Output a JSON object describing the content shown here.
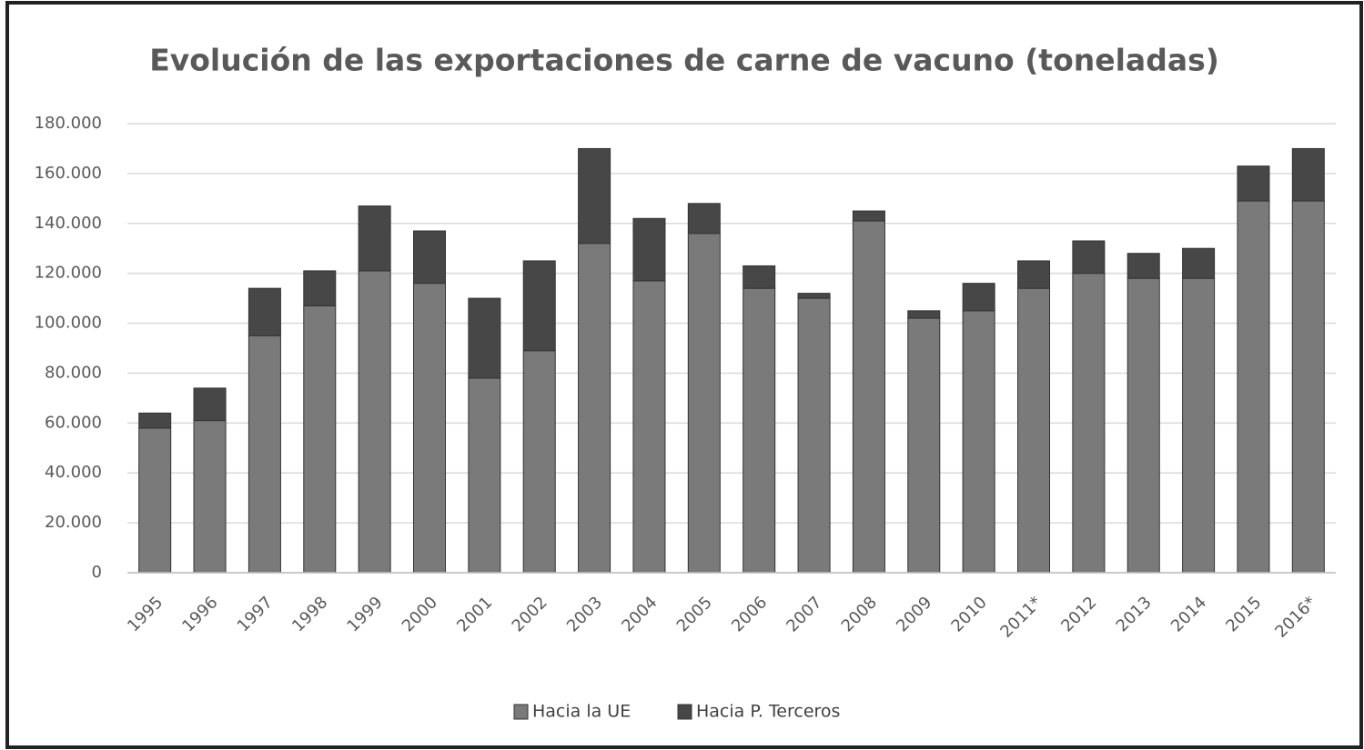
{
  "chart_data": {
    "type": "stacked_bar",
    "title": "Evolución de las exportaciones de carne de vacuno (toneladas)",
    "categories": [
      "1995",
      "1996",
      "1997",
      "1998",
      "1999",
      "2000",
      "2001",
      "2002",
      "2003",
      "2004",
      "2005",
      "2006",
      "2007",
      "2008",
      "2009",
      "2010",
      "2011*",
      "2012",
      "2013",
      "2014",
      "2015",
      "2016*"
    ],
    "series": [
      {
        "name": "Hacia la UE",
        "color": "#7a7a7a",
        "values": [
          58000,
          61000,
          95000,
          107000,
          121000,
          116000,
          78000,
          89000,
          132000,
          117000,
          136000,
          114000,
          110000,
          141000,
          102000,
          105000,
          114000,
          120000,
          118000,
          118000,
          149000,
          149000
        ]
      },
      {
        "name": "Hacia P. Terceros",
        "color": "#474747",
        "values": [
          6000,
          13000,
          19000,
          14000,
          26000,
          21000,
          32000,
          36000,
          38000,
          25000,
          12000,
          9000,
          2000,
          4000,
          3000,
          11000,
          11000,
          13000,
          10000,
          12000,
          14000,
          21000
        ]
      }
    ],
    "ylim": [
      0,
      180000
    ],
    "yticks": [
      0,
      {
        "value": 20000,
        "label": "20.000"
      },
      {
        "value": 40000,
        "label": "40.000"
      },
      {
        "value": 60000,
        "label": "60.000"
      },
      {
        "value": 80000,
        "label": "80.000"
      },
      {
        "value": 100000,
        "label": "100.000"
      },
      {
        "value": 120000,
        "label": "120.000"
      },
      {
        "value": 140000,
        "label": "140.000"
      },
      {
        "value": 160000,
        "label": "160.000"
      },
      {
        "value": 180000,
        "label": "180.000"
      }
    ],
    "grid": true,
    "legend": "bottom"
  }
}
